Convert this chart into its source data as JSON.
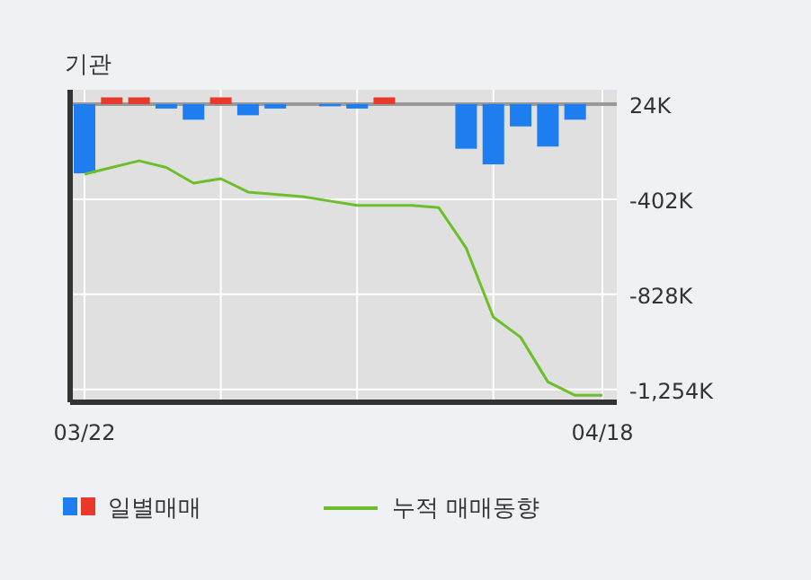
{
  "chart_data": {
    "type": "bar",
    "title": "기관",
    "categories": [
      "03/22",
      null,
      null,
      null,
      null,
      null,
      null,
      null,
      null,
      null,
      null,
      null,
      null,
      null,
      null,
      null,
      null,
      null,
      null,
      "04/18"
    ],
    "series": [
      {
        "name": "일별매매",
        "color": "#1e7ef0",
        "colors": [
          "#1e7ef0",
          "#e8392b",
          "#e8392b",
          "#1e7ef0",
          "#1e7ef0",
          "#e8392b",
          "#1e7ef0",
          "#1e7ef0",
          "#1e7ef0",
          "#1e7ef0",
          "#1e7ef0",
          "#e8392b",
          "#1e7ef0",
          "#1e7ef0",
          "#1e7ef0",
          "#1e7ef0",
          "#1e7ef0",
          "#1e7ef0",
          "#1e7ef0",
          "#1e7ef0"
        ],
        "base": [
          24,
          24,
          24,
          24,
          24,
          24,
          24,
          24,
          null,
          24,
          24,
          24,
          null,
          null,
          24,
          24,
          24,
          24,
          24,
          null
        ],
        "values": [
          -310,
          30,
          30,
          -20,
          -70,
          30,
          -50,
          -20,
          null,
          -10,
          -20,
          30,
          null,
          null,
          -200,
          -270,
          -100,
          -190,
          -70,
          null
        ]
      },
      {
        "name": "누적 매매동향",
        "type": "line",
        "color": "#6cbf2a",
        "values": [
          -290,
          -260,
          -230,
          -260,
          -330,
          -310,
          -370,
          -380,
          -390,
          -410,
          -430,
          -430,
          -430,
          -440,
          -620,
          -930,
          -1020,
          -1220,
          -1280,
          -1280
        ]
      }
    ],
    "ylim": [
      -1311,
      88
    ],
    "yticks": [
      {
        "value": 24,
        "label": "24K"
      },
      {
        "value": -402,
        "label": "-402K"
      },
      {
        "value": -828,
        "label": "-828K"
      },
      {
        "value": -1254,
        "label": "-1,254K"
      }
    ],
    "ref_lines": [
      {
        "axis": "y",
        "value": 24,
        "color": "#999999"
      }
    ],
    "grid": true,
    "legend": "bottom"
  }
}
